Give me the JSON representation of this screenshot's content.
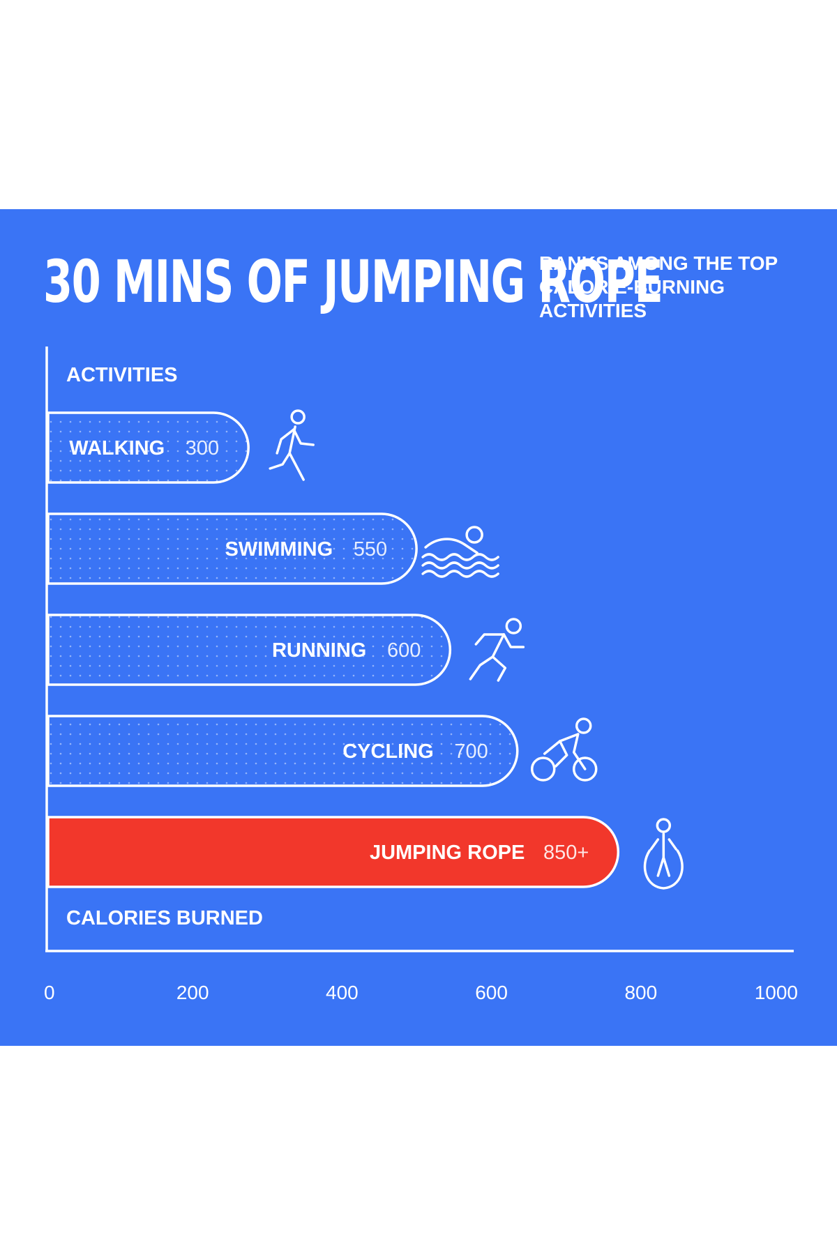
{
  "title": "30 MINS OF JUMPING ROPE",
  "subtitle": "RANKS AMONG THE TOP CALORIE-BURNING ACTIVITIES",
  "colors": {
    "background": "#3a74f5",
    "bar_outline": "#ffffff",
    "highlight": "#f2372b",
    "text": "#ffffff"
  },
  "chart_data": {
    "type": "bar",
    "orientation": "horizontal",
    "ylabel": "ACTIVITIES",
    "xlabel": "CALORIES BURNED",
    "xlim": [
      0,
      1000
    ],
    "ticks": [
      {
        "value": 0,
        "label": "0"
      },
      {
        "value": 200,
        "label": "200"
      },
      {
        "value": 400,
        "label": "400"
      },
      {
        "value": 600,
        "label": "600"
      },
      {
        "value": 800,
        "label": "800"
      },
      {
        "value": 1000,
        "label": "1000"
      }
    ],
    "grid": false,
    "bars": [
      {
        "category": "WALKING",
        "value": 300,
        "value_label": "300",
        "highlight": false,
        "icon": "walking-icon"
      },
      {
        "category": "SWIMMING",
        "value": 550,
        "value_label": "550",
        "highlight": false,
        "icon": "swimming-icon"
      },
      {
        "category": "RUNNING",
        "value": 600,
        "value_label": "600",
        "highlight": false,
        "icon": "running-icon"
      },
      {
        "category": "CYCLING",
        "value": 700,
        "value_label": "700",
        "highlight": false,
        "icon": "cycling-icon"
      },
      {
        "category": "JUMPING ROPE",
        "value": 850,
        "value_label": "850+",
        "highlight": true,
        "icon": "jump-rope-icon"
      }
    ]
  }
}
